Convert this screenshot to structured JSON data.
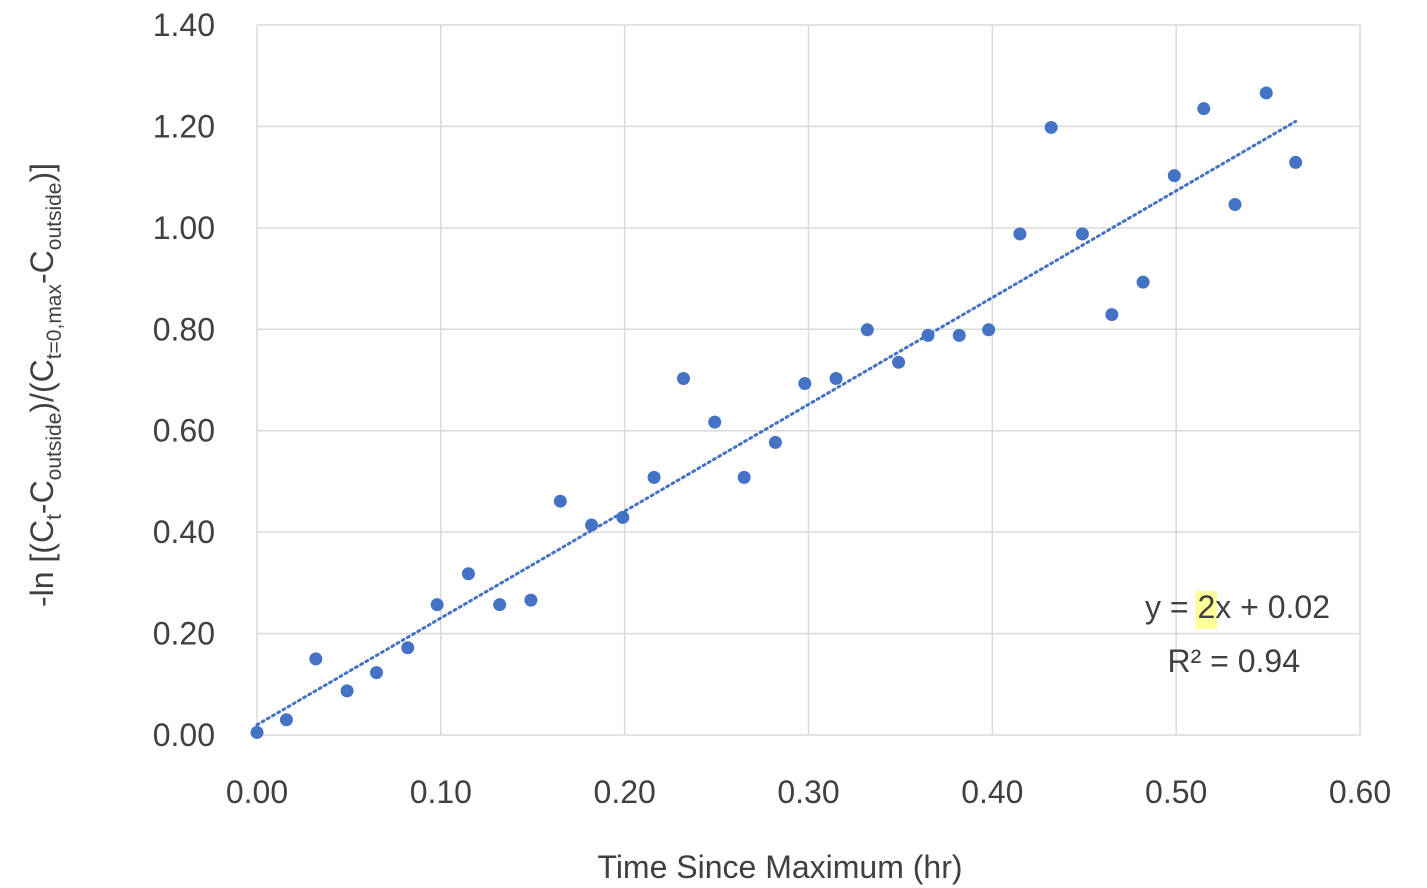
{
  "chart_data": {
    "type": "scatter",
    "xlabel": "Time Since Maximum (hr)",
    "ylabel": {
      "parts": [
        "-ln [(C",
        "t",
        "-C",
        "outside",
        ")/(C",
        "t=0,max",
        "-C",
        "outside",
        ")]"
      ]
    },
    "xlim": [
      0,
      0.6
    ],
    "ylim": [
      0,
      1.4
    ],
    "x_ticks": [
      "0.00",
      "0.10",
      "0.20",
      "0.30",
      "0.40",
      "0.50",
      "0.60"
    ],
    "y_ticks": [
      "0.00",
      "0.20",
      "0.40",
      "0.60",
      "0.80",
      "1.00",
      "1.20",
      "1.40"
    ],
    "grid": true,
    "series": [
      {
        "color": "#4472c4",
        "points": [
          [
            0.0,
            0.005
          ],
          [
            0.016,
            0.03
          ],
          [
            0.032,
            0.15
          ],
          [
            0.049,
            0.087
          ],
          [
            0.065,
            0.123
          ],
          [
            0.082,
            0.172
          ],
          [
            0.098,
            0.257
          ],
          [
            0.115,
            0.318
          ],
          [
            0.132,
            0.257
          ],
          [
            0.149,
            0.266
          ],
          [
            0.165,
            0.461
          ],
          [
            0.182,
            0.414
          ],
          [
            0.199,
            0.429
          ],
          [
            0.216,
            0.508
          ],
          [
            0.232,
            0.703
          ],
          [
            0.249,
            0.617
          ],
          [
            0.265,
            0.508
          ],
          [
            0.282,
            0.577
          ],
          [
            0.298,
            0.693
          ],
          [
            0.315,
            0.703
          ],
          [
            0.332,
            0.799
          ],
          [
            0.349,
            0.735
          ],
          [
            0.365,
            0.788
          ],
          [
            0.382,
            0.788
          ],
          [
            0.398,
            0.799
          ],
          [
            0.415,
            0.988
          ],
          [
            0.432,
            1.198
          ],
          [
            0.449,
            0.988
          ],
          [
            0.465,
            0.829
          ],
          [
            0.482,
            0.893
          ],
          [
            0.499,
            1.103
          ],
          [
            0.515,
            1.235
          ],
          [
            0.532,
            1.046
          ],
          [
            0.549,
            1.266
          ],
          [
            0.565,
            1.129
          ]
        ]
      }
    ],
    "trendline": {
      "type": "linear",
      "x_range": [
        0,
        0.565
      ],
      "y_start": 0.02,
      "y_end": 1.21,
      "style": "dotted",
      "color": "#4472c4"
    },
    "annotation": {
      "equation": {
        "prefix": "y = ",
        "highlight": "2",
        "suffix": "x + 0.02",
        "highlight_color": "#ffff99"
      },
      "r2": "R² = 0.94"
    }
  }
}
